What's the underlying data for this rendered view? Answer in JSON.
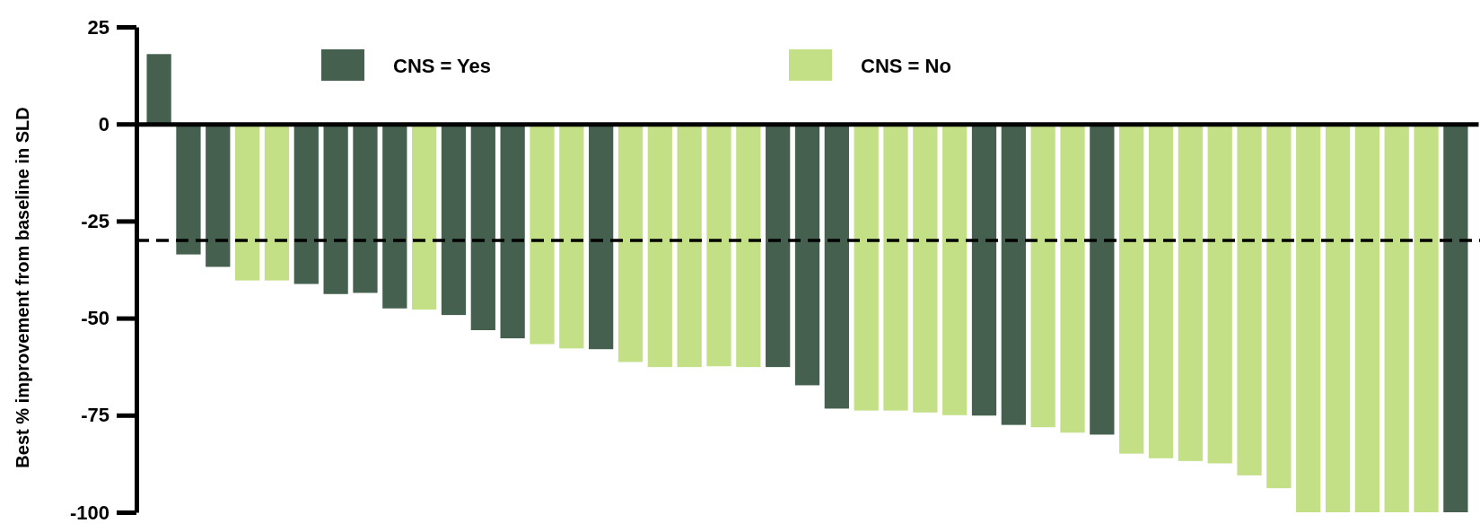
{
  "chart_data": {
    "type": "bar",
    "stacked": true,
    "ylabel": "Best % improvement from baseline in SLD",
    "categories": [
      null,
      null,
      null,
      null,
      null,
      null,
      null,
      null,
      null,
      null,
      null,
      null,
      null,
      null,
      null,
      null,
      null,
      null,
      null,
      null,
      null,
      null,
      null,
      null,
      null,
      null,
      null,
      null,
      null,
      null,
      null,
      null,
      null,
      null,
      null,
      null,
      null,
      null,
      null,
      null,
      null,
      null,
      null,
      null,
      null
    ],
    "series": [
      {
        "name": "CNS = Yes",
        "color": "#46604f",
        "values": [
          18,
          -33.6,
          -36.8,
          null,
          null,
          -41.2,
          -43.8,
          -43.5,
          -47.5,
          null,
          -49.2,
          -53.1,
          -55.2,
          null,
          null,
          -58,
          null,
          null,
          null,
          null,
          null,
          -62.6,
          -67.3,
          -73.3,
          null,
          null,
          null,
          null,
          -75.1,
          -77.5,
          null,
          null,
          -80,
          null,
          null,
          null,
          null,
          null,
          null,
          null,
          null,
          null,
          null,
          null,
          -100
        ]
      },
      {
        "name": "CNS = No",
        "color": "#c3e087",
        "values": [
          null,
          null,
          null,
          -40.3,
          -40.3,
          null,
          null,
          null,
          null,
          -47.8,
          null,
          null,
          null,
          -56.7,
          -57.8,
          null,
          -61.3,
          -62.6,
          -62.6,
          -62.4,
          -62.6,
          null,
          null,
          null,
          -73.8,
          -73.8,
          -74.3,
          -75,
          null,
          null,
          -78.1,
          -79.5,
          null,
          -84.9,
          -86.1,
          -86.8,
          -87.4,
          -90.5,
          -93.8,
          -100,
          -100,
          -100,
          -100,
          -100,
          null
        ]
      }
    ],
    "ylim": [
      -100,
      25
    ],
    "yticks": [
      25,
      0,
      -25,
      -50,
      -75,
      -100
    ],
    "ref_lines": [
      {
        "axis": "y",
        "value": -30,
        "line_style": "dashed",
        "color": "#000000"
      }
    ],
    "legend": "top"
  }
}
